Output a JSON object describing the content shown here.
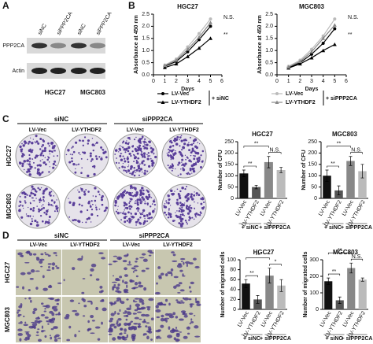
{
  "panels": [
    "A",
    "B",
    "C",
    "D"
  ],
  "blot": {
    "lanes": [
      "siNC",
      "siPPP2CA",
      "siNC",
      "siPPP2CA"
    ],
    "rows": [
      "PPP2CA",
      "Actin"
    ],
    "cells": [
      "HGC27",
      "MGC803"
    ]
  },
  "colony": {
    "groups": [
      "siNC",
      "siPPP2CA"
    ],
    "conditions": [
      "LV-Vec",
      "LV-YTHDF2",
      "LV-Vec",
      "LV-YTHDF2"
    ],
    "cells": [
      "HGC27",
      "MGC803"
    ]
  },
  "migration": {
    "groups": [
      "siNC",
      "siPPP2CA"
    ],
    "conditions": [
      "LV-Vec",
      "LV-YTHDF2",
      "LV-Vec",
      "LV-YTHDF2"
    ],
    "cells": [
      "HGC27",
      "MGC803"
    ]
  },
  "chart_data": [
    {
      "type": "line",
      "title": "HGC27",
      "y_label": "Absorbance at 450 nm",
      "x_label": "Days",
      "x": [
        1,
        2,
        3,
        4,
        5
      ],
      "xlim": [
        0,
        6
      ],
      "xticks": [
        0,
        1,
        2,
        3,
        4,
        5,
        6
      ],
      "ylim": [
        0,
        2.5
      ],
      "yticks": [
        {
          "value": 0,
          "label": "0.0"
        },
        0.5,
        {
          "value": 1,
          "label": "1.0"
        },
        1.5,
        {
          "value": 2,
          "label": "2.0"
        },
        2.5
      ],
      "series": [
        {
          "name": "LV-Vec",
          "color": "#000000",
          "marker": "circle",
          "values": [
            0.35,
            0.55,
            0.95,
            1.45,
            2.0
          ]
        },
        {
          "name": "LV-YTHDF2",
          "color": "#000000",
          "marker": "triangle",
          "values": [
            0.3,
            0.45,
            0.75,
            1.1,
            1.5
          ]
        },
        {
          "name": "LV-Vec",
          "color": "#bbbbbb",
          "marker": "circle",
          "values": [
            0.4,
            0.65,
            1.15,
            1.7,
            2.3
          ]
        },
        {
          "name": "LV-YTHDF2",
          "color": "#888888",
          "marker": "triangle",
          "values": [
            0.38,
            0.6,
            1.05,
            1.55,
            2.15
          ]
        }
      ],
      "legend_groups": [
        "+ siNC",
        "+ siPPP2CA"
      ],
      "annotations": [
        "N.S.",
        "**"
      ]
    },
    {
      "type": "line",
      "title": "MGC803",
      "y_label": "Absorbance at 450 nm",
      "x_label": "Days",
      "x": [
        1,
        2,
        3,
        4,
        5
      ],
      "xlim": [
        0,
        6
      ],
      "xticks": [
        0,
        1,
        2,
        3,
        4,
        5,
        6
      ],
      "ylim": [
        0,
        2.5
      ],
      "yticks": [
        {
          "value": 0,
          "label": "0.0"
        },
        0.5,
        {
          "value": 1,
          "label": "1.0"
        },
        1.5,
        {
          "value": 2,
          "label": "2.0"
        },
        2.5
      ],
      "series": [
        {
          "color": "#000000",
          "marker": "circle",
          "values": [
            0.3,
            0.5,
            0.85,
            1.3,
            1.9
          ]
        },
        {
          "color": "#000000",
          "marker": "triangle",
          "values": [
            0.28,
            0.45,
            0.7,
            1.0,
            1.25
          ]
        },
        {
          "color": "#bbbbbb",
          "marker": "circle",
          "values": [
            0.35,
            0.6,
            1.05,
            1.6,
            2.3
          ]
        },
        {
          "color": "#888888",
          "marker": "triangle",
          "values": [
            0.32,
            0.55,
            0.95,
            1.5,
            2.05
          ]
        }
      ],
      "annotations": [
        "N.S.",
        "**"
      ]
    },
    {
      "type": "bar",
      "title": "HGC27",
      "y_label": "Number of CFU",
      "categories": [
        "LV-Vec",
        "LV-YTHDF2",
        "LV-Vec",
        "LV-YTHDF2"
      ],
      "values": [
        110,
        50,
        160,
        125
      ],
      "errors": [
        15,
        8,
        25,
        12
      ],
      "colors": [
        "#111111",
        "#555555",
        "#888888",
        "#bbbbbb"
      ],
      "ylim": [
        0,
        250
      ],
      "yticks": [
        0,
        50,
        100,
        150,
        200,
        250
      ],
      "group_labels": [
        "+ siNC",
        "+ siPPP2CA"
      ],
      "annotations": [
        "**",
        "**",
        "N.S."
      ]
    },
    {
      "type": "bar",
      "title": "MGC803",
      "y_label": "Number of CFU",
      "categories": [
        "LV-Vec",
        "LV-YTHDF2",
        "LV-Vec",
        "LV-YTHDF2"
      ],
      "values": [
        100,
        35,
        165,
        120
      ],
      "errors": [
        25,
        20,
        20,
        30
      ],
      "colors": [
        "#111111",
        "#555555",
        "#888888",
        "#bbbbbb"
      ],
      "ylim": [
        0,
        250
      ],
      "yticks": [
        0,
        50,
        100,
        150,
        200,
        250
      ],
      "group_labels": [
        "+ siNC",
        "+ siPPP2CA"
      ],
      "annotations": [
        "**",
        "**",
        "N.S."
      ]
    },
    {
      "type": "bar",
      "title": "HGC27",
      "y_label": "Number of migrated cells",
      "categories": [
        "LV-Vec",
        "LV-YTHDF2",
        "LV-Vec",
        "LV-YTHDF2"
      ],
      "values": [
        52,
        20,
        68,
        48
      ],
      "errors": [
        8,
        8,
        15,
        12
      ],
      "colors": [
        "#111111",
        "#555555",
        "#888888",
        "#bbbbbb"
      ],
      "ylim": [
        0,
        100
      ],
      "yticks": [
        0,
        20,
        40,
        60,
        80,
        100
      ],
      "group_labels": [
        "+ siNC",
        "+ siPPP2CA"
      ],
      "annotations": [
        "**",
        "**",
        "*"
      ]
    },
    {
      "type": "bar",
      "title": "MGC803",
      "y_label": "Number of migrated cells",
      "categories": [
        "LV-Vec",
        "LV-YTHDF2",
        "LV-Vec",
        "LV-YTHDF2"
      ],
      "values": [
        170,
        55,
        250,
        180
      ],
      "errors": [
        20,
        20,
        30,
        10
      ],
      "colors": [
        "#111111",
        "#555555",
        "#888888",
        "#bbbbbb"
      ],
      "ylim": [
        0,
        300
      ],
      "yticks": [
        0,
        100,
        200,
        300
      ],
      "group_labels": [
        "+ siNC",
        "+ siPPP2CA"
      ],
      "annotations": [
        "**",
        "**",
        "N.S."
      ]
    }
  ]
}
